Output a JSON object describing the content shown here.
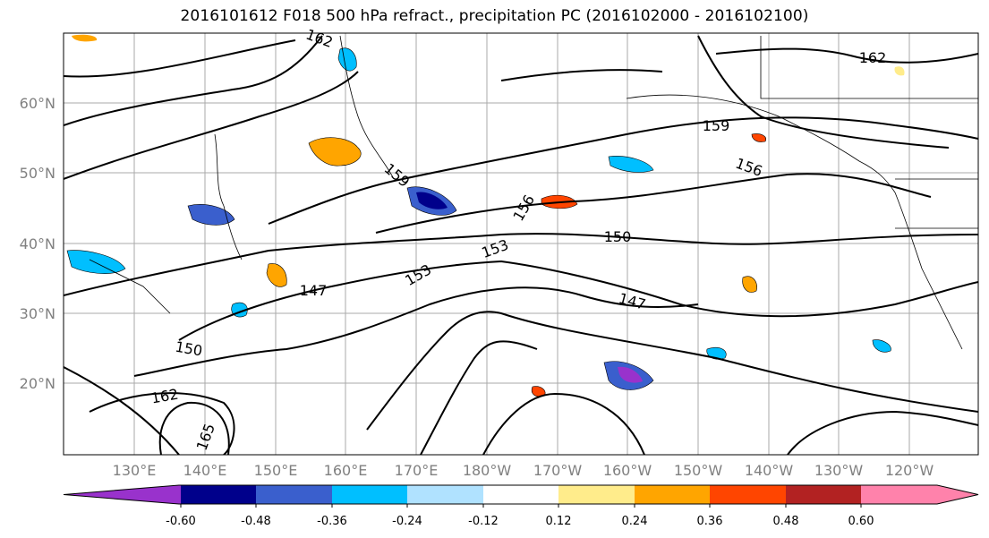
{
  "title": "2016101612 F018 500 hPa refract., precipitation PC (2016102000 - 2016102100)",
  "lat_labels": [
    "60°N",
    "50°N",
    "40°N",
    "30°N",
    "20°N"
  ],
  "lon_labels": [
    "130°E",
    "140°E",
    "150°E",
    "160°E",
    "170°E",
    "180°W",
    "170°W",
    "160°W",
    "150°W",
    "140°W",
    "130°W",
    "120°W"
  ],
  "contour_labels": [
    "162",
    "159",
    "156",
    "153",
    "150",
    "147",
    "162",
    "159",
    "156",
    "153",
    "150",
    "147",
    "165",
    "162"
  ],
  "colorbar": {
    "ticks": [
      "-0.60",
      "-0.48",
      "-0.36",
      "-0.24",
      "-0.12",
      "0.12",
      "0.24",
      "0.36",
      "0.48",
      "0.60"
    ],
    "colors": [
      "#9932cc",
      "#00008b",
      "#3a5fcd",
      "#00bfff",
      "#b0e2ff",
      "#ffffff",
      "#ffec8b",
      "#ffa500",
      "#ff4500",
      "#b22222",
      "#ff82ab"
    ]
  }
}
